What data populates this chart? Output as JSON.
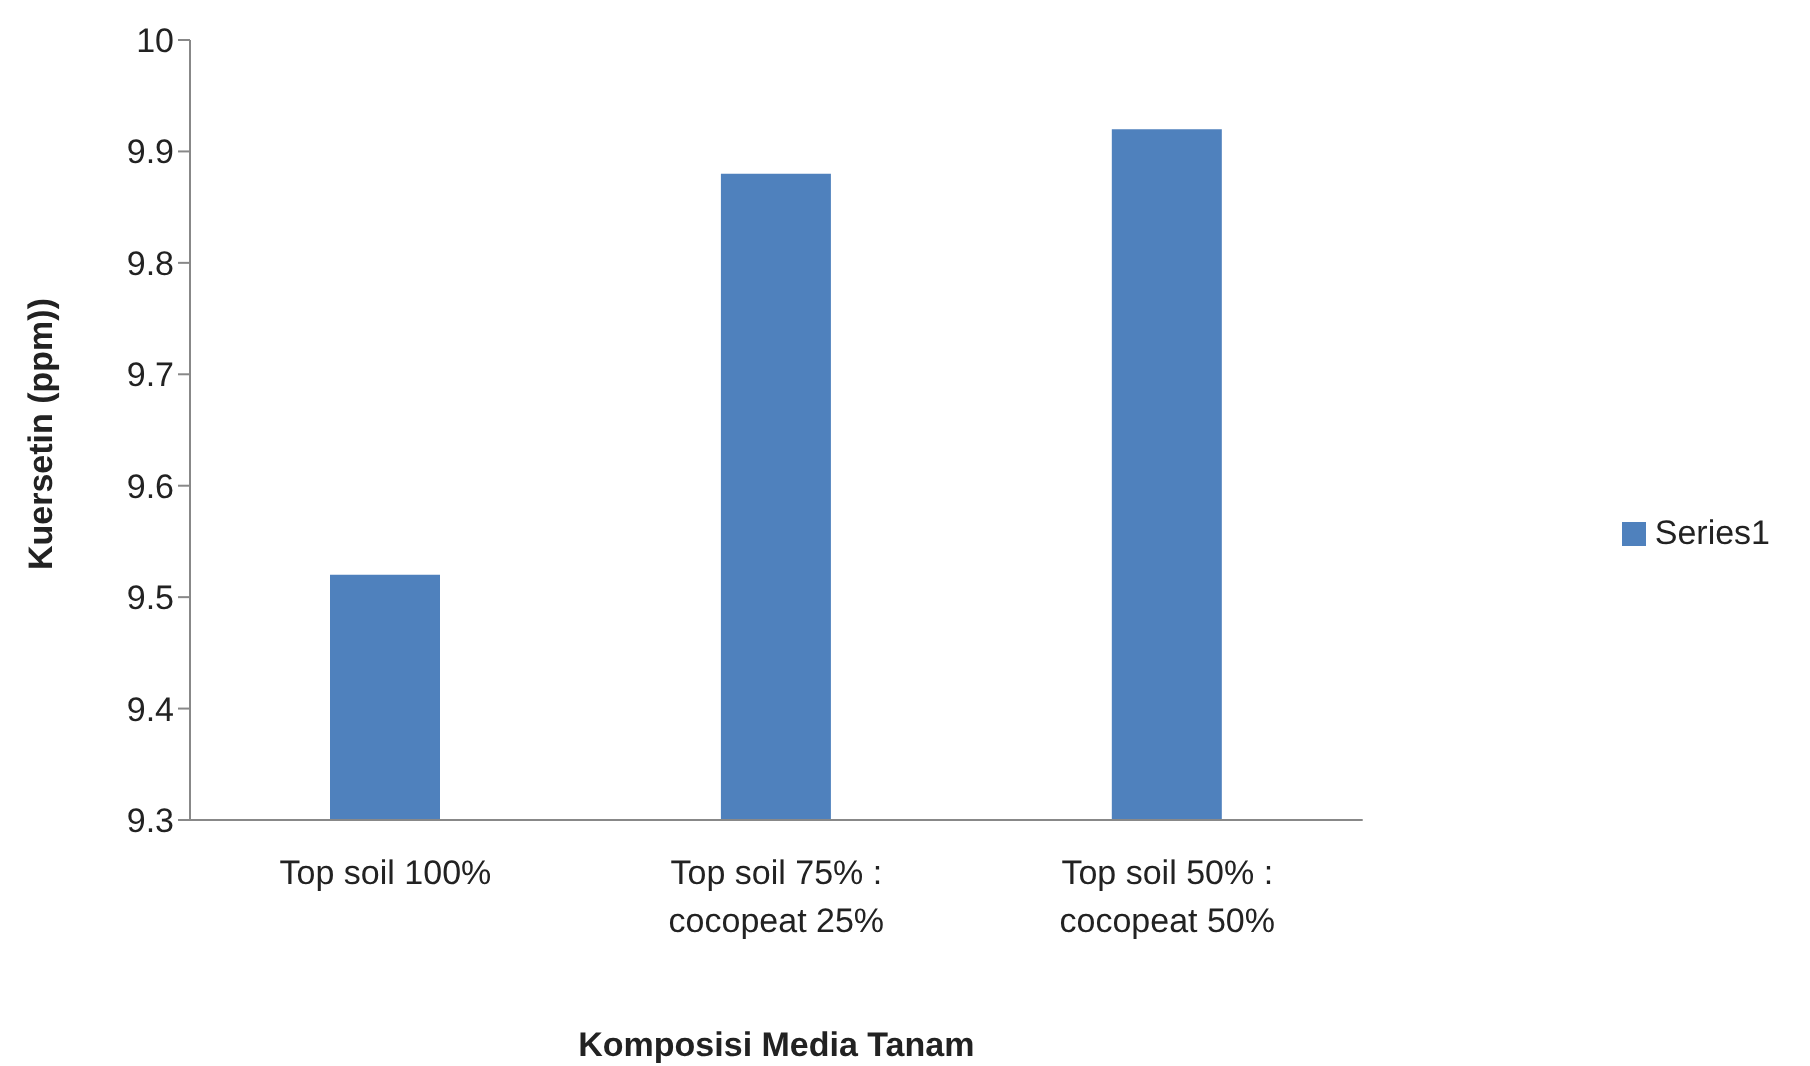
{
  "chart_data": {
    "type": "bar",
    "xlabel": "Komposisi Media Tanam",
    "ylabel": "Kuersetin (ppm))",
    "categories": [
      "Top soil 100%",
      "Top soil 75% : cocopeat 25%",
      "Top soil 50% : cocopeat 50%"
    ],
    "series": [
      {
        "name": "Series1",
        "color": "#4f81bd",
        "values": [
          9.52,
          9.88,
          9.92
        ]
      }
    ],
    "ylim": [
      9.3,
      10
    ],
    "yticks": [
      9.3,
      9.4,
      9.5,
      9.6,
      9.7,
      9.8,
      9.9,
      10
    ],
    "grid": false,
    "legend": "right"
  }
}
